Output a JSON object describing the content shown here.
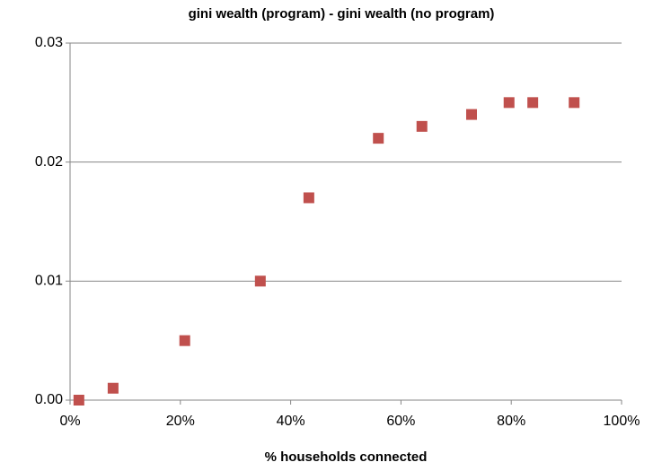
{
  "chart_data": {
    "type": "scatter",
    "title": "gini wealth (program) - gini wealth (no program)",
    "xlabel": "% households connected",
    "series": [
      {
        "color": "#c0504d",
        "x": [
          1.6,
          7.8,
          20.8,
          34.5,
          43.3,
          55.9,
          63.8,
          72.8,
          79.6,
          83.9,
          91.4
        ],
        "values": [
          0,
          0.001,
          0.005,
          0.01,
          0.017,
          0.022,
          0.023,
          0.024,
          0.025,
          0.025,
          0.025
        ]
      }
    ],
    "xlim": [
      0,
      100
    ],
    "xticks": [
      {
        "value": 0,
        "label": "0%"
      },
      {
        "value": 20,
        "label": "20%"
      },
      {
        "value": 40,
        "label": "40%"
      },
      {
        "value": 60,
        "label": "60%"
      },
      {
        "value": 80,
        "label": "80%"
      },
      {
        "value": 100,
        "label": "100%"
      }
    ],
    "ylim": [
      0,
      0.03
    ],
    "yticks": [
      {
        "value": 0,
        "label": "0.00"
      },
      0.01,
      0.02,
      0.03
    ],
    "grid": true
  }
}
